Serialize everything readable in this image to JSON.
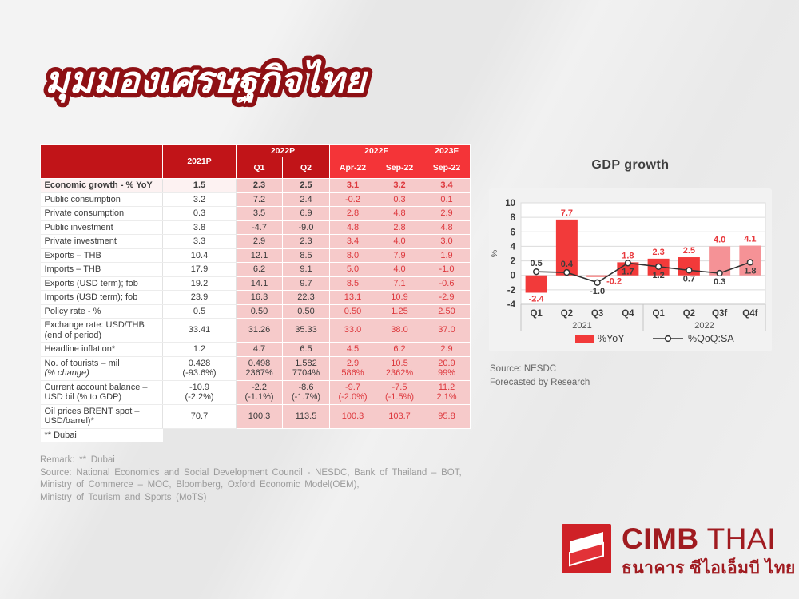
{
  "page": {
    "title": "มุมมองเศรษฐกิจไทย"
  },
  "table": {
    "header": {
      "col_2021": "2021P",
      "group_2022p": "2022P",
      "group_2022f": "2022F",
      "group_2023f": "2023F",
      "sub": [
        "Q1",
        "Q2",
        "Apr-22",
        "Sep-22",
        "Sep-22"
      ]
    },
    "rows": [
      {
        "label": "Economic growth - % YoY",
        "bold": true,
        "values": [
          "1.5",
          "2.3",
          "2.5",
          "3.1",
          "3.2",
          "3.4"
        ]
      },
      {
        "label": "Public consumption",
        "values": [
          "3.2",
          "7.2",
          "2.4",
          "-0.2",
          "0.3",
          "0.1"
        ]
      },
      {
        "label": "Private consumption",
        "values": [
          "0.3",
          "3.5",
          "6.9",
          "2.8",
          "4.8",
          "2.9"
        ]
      },
      {
        "label": "Public investment",
        "values": [
          "3.8",
          "-4.7",
          "-9.0",
          "4.8",
          "2.8",
          "4.8"
        ]
      },
      {
        "label": "Private investment",
        "values": [
          "3.3",
          "2.9",
          "2.3",
          "3.4",
          "4.0",
          "3.0"
        ]
      },
      {
        "label": "Exports – THB",
        "values": [
          "10.4",
          "12.1",
          "8.5",
          "8.0",
          "7.9",
          "1.9"
        ]
      },
      {
        "label": "Imports – THB",
        "values": [
          "17.9",
          "6.2",
          "9.1",
          "5.0",
          "4.0",
          "-1.0"
        ]
      },
      {
        "label": "Exports (USD term); fob",
        "values": [
          "19.2",
          "14.1",
          "9.7",
          "8.5",
          "7.1",
          "-0.6"
        ]
      },
      {
        "label": "Imports (USD term); fob",
        "values": [
          "23.9",
          "16.3",
          "22.3",
          "13.1",
          "10.9",
          "-2.9"
        ]
      },
      {
        "label": "Policy rate - %",
        "values": [
          "0.5",
          "0.50",
          "0.50",
          "0.50",
          "1.25",
          "2.50"
        ]
      },
      {
        "label": "Exchange rate: USD/THB\n(end of period)",
        "values": [
          "33.41",
          "31.26",
          "35.33",
          "33.0",
          "38.0",
          "37.0"
        ]
      },
      {
        "label": "Headline inflation*",
        "values": [
          "1.2",
          "4.7",
          "6.5",
          "4.5",
          "6.2",
          "2.9"
        ]
      },
      {
        "label": "No. of tourists – mil\n(% change)",
        "values": [
          "0.428\n(-93.6%)",
          "0.498\n2367%",
          "1.582\n7704%",
          "2.9\n586%",
          "10.5\n2362%",
          "20.9\n99%"
        ]
      },
      {
        "label": "Current account balance –\nUSD bil (% to GDP)",
        "values": [
          "-10.9\n(-2.2%)",
          "-2.2\n(-1.1%)",
          "-8.6\n(-1.7%)",
          "-9.7\n(-2.0%)",
          "-7.5\n(-1.5%)",
          "11.2\n2.1%"
        ]
      },
      {
        "label": "Oil prices BRENT spot –\nUSD/barrel)*",
        "values": [
          "70.7",
          "100.3",
          "113.5",
          "100.3",
          "103.7",
          "95.8"
        ]
      },
      {
        "label": "** Dubai",
        "no_fill": true,
        "values": [
          "",
          "",
          "",
          "",
          "",
          ""
        ]
      }
    ]
  },
  "chart_data": {
    "type": "bar",
    "title": "GDP growth",
    "ylabel": "%",
    "ylim": [
      -4,
      10
    ],
    "ytick_step": 2,
    "grid": true,
    "legend_position": "bottom",
    "categories": [
      "Q1",
      "Q2",
      "Q3",
      "Q4",
      "Q1",
      "Q2",
      "Q3f",
      "Q4f"
    ],
    "group_labels": [
      {
        "label": "2021",
        "span": [
          0,
          3
        ]
      },
      {
        "label": "2022",
        "span": [
          4,
          7
        ]
      }
    ],
    "series": [
      {
        "name": "%YoY",
        "type": "bar",
        "values": [
          -2.4,
          7.7,
          -0.2,
          1.8,
          2.3,
          2.5,
          4.0,
          4.1
        ]
      },
      {
        "name": "%QoQ:SA",
        "type": "line",
        "values": [
          0.5,
          0.4,
          -1.0,
          1.7,
          1.2,
          0.7,
          0.3,
          1.8
        ]
      }
    ],
    "forecast_start_index": 6,
    "bar_color": "#f23a3a",
    "bar_forecast_color": "#f59296",
    "line_color": "#333333",
    "yoy_label_pos": [
      "below",
      "above",
      "right",
      "above",
      "above",
      "above",
      "above",
      "above"
    ],
    "qoq_label_pos": [
      "above",
      "above",
      "below",
      "below",
      "below",
      "below",
      "below",
      "below"
    ]
  },
  "chart_source": {
    "line1": "Source: NESDC",
    "line2": "Forecasted by Research"
  },
  "footer": {
    "remark": "Remark: ** Dubai",
    "source_lines": [
      "Source: National Economics and Social Development Council - NESDC, Bank of Thailand – BOT,",
      "Ministry of Commerce – MOC, Bloomberg, Oxford Economic Model(OEM),",
      "Ministry of Tourism and Sports (MoTS)"
    ]
  },
  "logo": {
    "brand_bold": "CIMB",
    "brand_light": "THAI",
    "thai_name": "ธนาคาร ซีไอเอ็มบี ไทย"
  },
  "colors": {
    "header_dark_red": "#c11418",
    "header_bright_red": "#f43438",
    "pink_cell": "#f6caca",
    "forecast_text_red": "#dd383d",
    "logo_maroon": "#a01b20"
  }
}
